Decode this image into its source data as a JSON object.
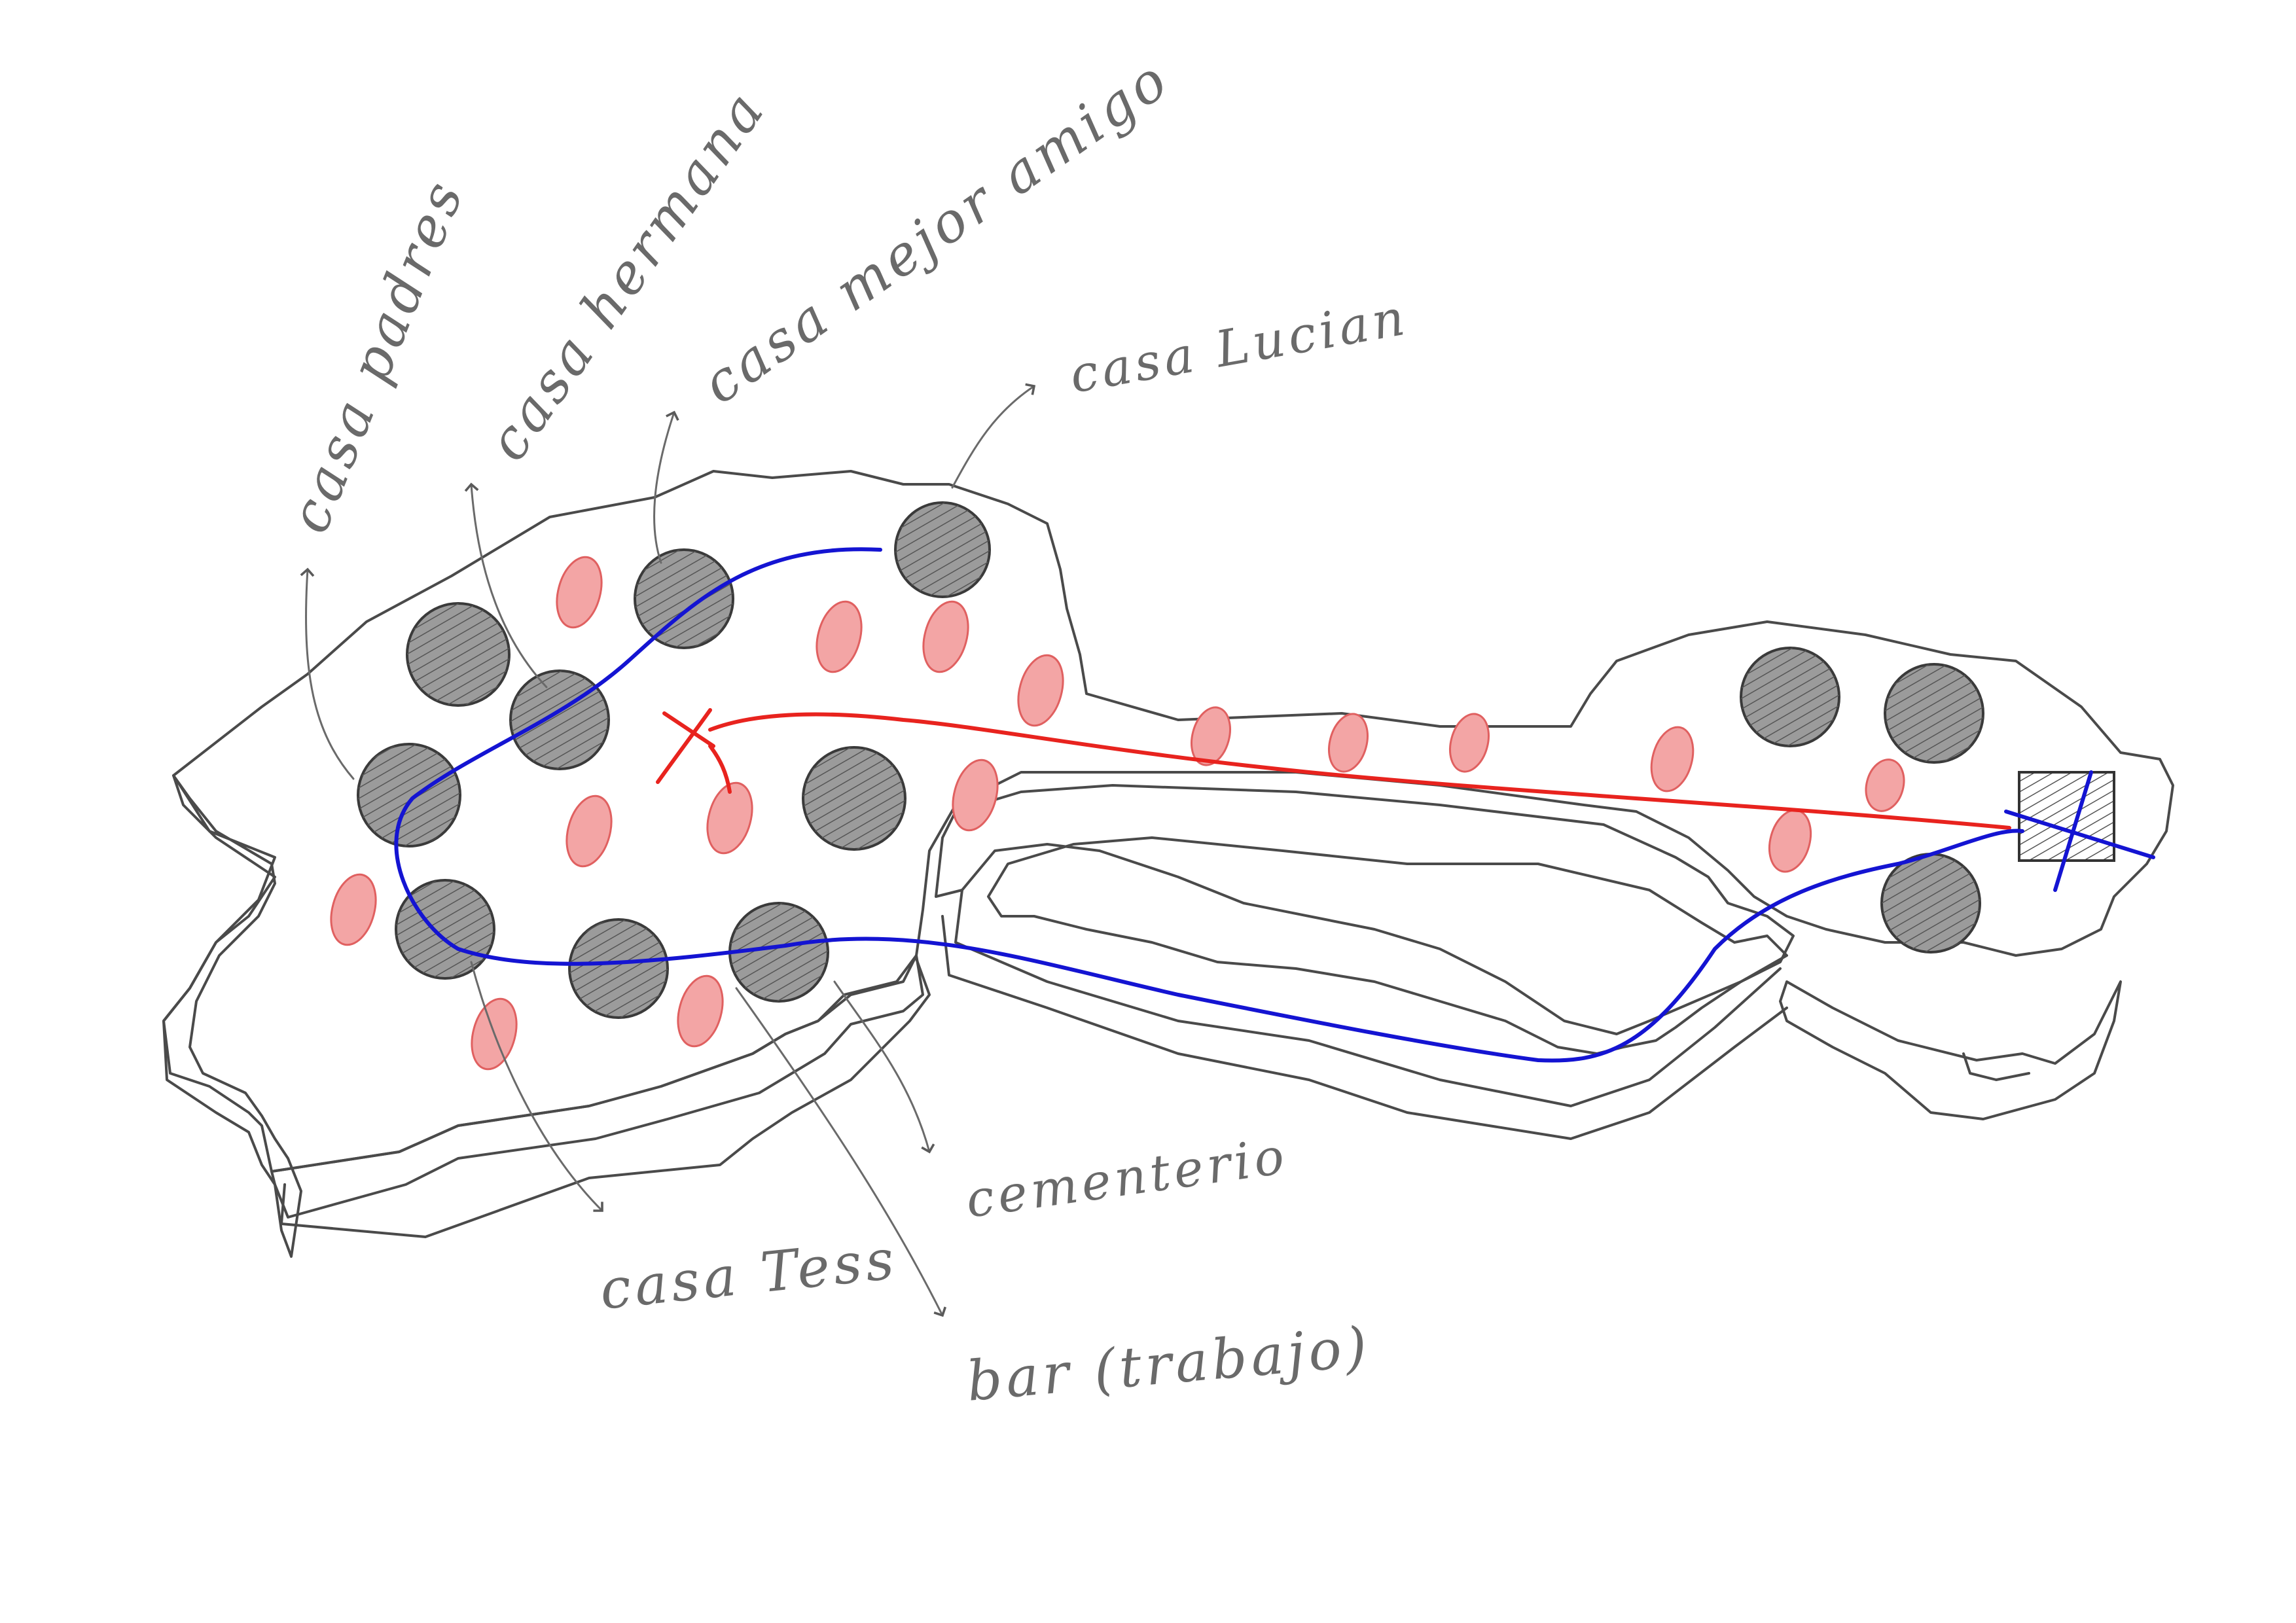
{
  "labels": {
    "casa_padres": "casa padres",
    "casa_hermana": "casa hermana",
    "casa_mejor_amigo": "casa mejor amigo",
    "casa_lucian": "casa Lucian",
    "casa_tess": "casa Tess",
    "cementerio": "cementerio",
    "bar_trabajo": "bar (trabajo)"
  },
  "colors": {
    "pencil": "#4a4a4a",
    "house_fill": "#9b9b9b",
    "tree_fill": "#f3a5a5",
    "route_red": "#e8231e",
    "route_blue": "#1414d2"
  },
  "icons": {
    "house": "hatched-circle-house-icon",
    "tree": "red-oval-tree-icon",
    "start_marker": "x-marker-icon",
    "end_marker": "square-box-icon"
  }
}
